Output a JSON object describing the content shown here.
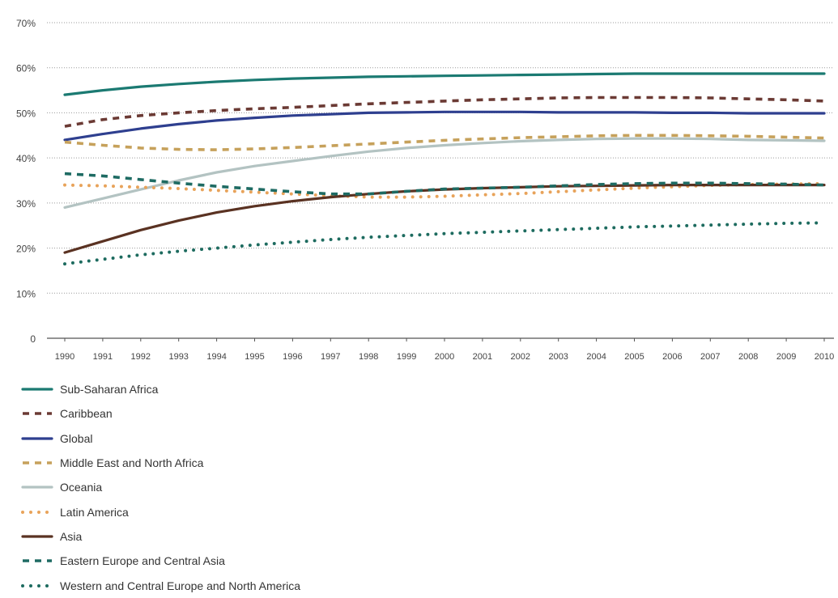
{
  "chart_data": {
    "type": "line",
    "title": "",
    "xlabel": "",
    "ylabel": "",
    "x": [
      "1990",
      "1991",
      "1992",
      "1993",
      "1994",
      "1995",
      "1996",
      "1997",
      "1998",
      "1999",
      "2000",
      "2001",
      "2002",
      "2003",
      "2004",
      "2005",
      "2006",
      "2007",
      "2008",
      "2009",
      "2010"
    ],
    "y_ticks": [
      "0",
      "10%",
      "20%",
      "30%",
      "40%",
      "50%",
      "60%",
      "70%"
    ],
    "ylim": [
      0,
      70
    ],
    "grid": true,
    "legend_position": "bottom-left",
    "series": [
      {
        "name": "Sub-Saharan Africa",
        "color": "#1b7a72",
        "dash": "solid",
        "values": [
          54,
          55,
          55.8,
          56.4,
          56.9,
          57.3,
          57.6,
          57.8,
          58,
          58.1,
          58.2,
          58.3,
          58.4,
          58.5,
          58.6,
          58.7,
          58.7,
          58.7,
          58.7,
          58.7,
          58.7
        ]
      },
      {
        "name": "Caribbean",
        "color": "#6b3a34",
        "dash": "dashed",
        "values": [
          47,
          48.5,
          49.4,
          50,
          50.5,
          50.9,
          51.2,
          51.6,
          52,
          52.3,
          52.6,
          52.9,
          53.1,
          53.3,
          53.4,
          53.4,
          53.4,
          53.3,
          53.1,
          52.9,
          52.6
        ]
      },
      {
        "name": "Global",
        "color": "#2e3f8f",
        "dash": "solid",
        "values": [
          44,
          45.3,
          46.5,
          47.5,
          48.3,
          48.9,
          49.4,
          49.7,
          50,
          50.1,
          50.2,
          50.2,
          50.2,
          50.1,
          50.1,
          50.1,
          50,
          50,
          49.9,
          49.9,
          49.9
        ]
      },
      {
        "name": "Middle East and North Africa",
        "color": "#c6a15b",
        "dash": "dashed",
        "values": [
          43.5,
          42.8,
          42.2,
          41.9,
          41.8,
          42,
          42.3,
          42.7,
          43.1,
          43.5,
          43.9,
          44.2,
          44.5,
          44.7,
          44.9,
          45,
          45,
          44.9,
          44.8,
          44.6,
          44.4
        ]
      },
      {
        "name": "Oceania",
        "color": "#b3c3c2",
        "dash": "solid",
        "values": [
          29,
          31,
          33,
          35,
          36.8,
          38.2,
          39.3,
          40.4,
          41.4,
          42.2,
          42.8,
          43.3,
          43.7,
          44,
          44.2,
          44.3,
          44.3,
          44.2,
          44,
          43.9,
          43.8
        ]
      },
      {
        "name": "Latin America",
        "color": "#e8a35a",
        "dash": "dotted",
        "values": [
          34,
          33.8,
          33.5,
          33.2,
          32.8,
          32.4,
          32,
          31.6,
          31.3,
          31.3,
          31.5,
          31.8,
          32.1,
          32.5,
          32.9,
          33.3,
          33.6,
          33.9,
          34.1,
          34.2,
          34.3
        ]
      },
      {
        "name": "Asia",
        "color": "#5a3222",
        "dash": "solid",
        "values": [
          19,
          21.5,
          24,
          26.1,
          27.9,
          29.3,
          30.4,
          31.3,
          32,
          32.6,
          33,
          33.3,
          33.5,
          33.7,
          33.8,
          33.9,
          34,
          34,
          34,
          34,
          34
        ]
      },
      {
        "name": "Eastern Europe and Central Asia",
        "color": "#1e6b63",
        "dash": "dashed",
        "values": [
          36.5,
          36,
          35.2,
          34.4,
          33.7,
          33.1,
          32.5,
          32,
          32,
          32.6,
          33.1,
          33.3,
          33.5,
          33.8,
          34.1,
          34.3,
          34.4,
          34.4,
          34.3,
          34.2,
          34
        ]
      },
      {
        "name": "Western and Central Europe and North America",
        "color": "#1d6b5f",
        "dash": "dotted",
        "values": [
          16.5,
          17.5,
          18.5,
          19.3,
          20,
          20.7,
          21.3,
          21.9,
          22.4,
          22.8,
          23.2,
          23.5,
          23.8,
          24.1,
          24.4,
          24.7,
          24.9,
          25.1,
          25.3,
          25.5,
          25.6
        ]
      }
    ]
  }
}
